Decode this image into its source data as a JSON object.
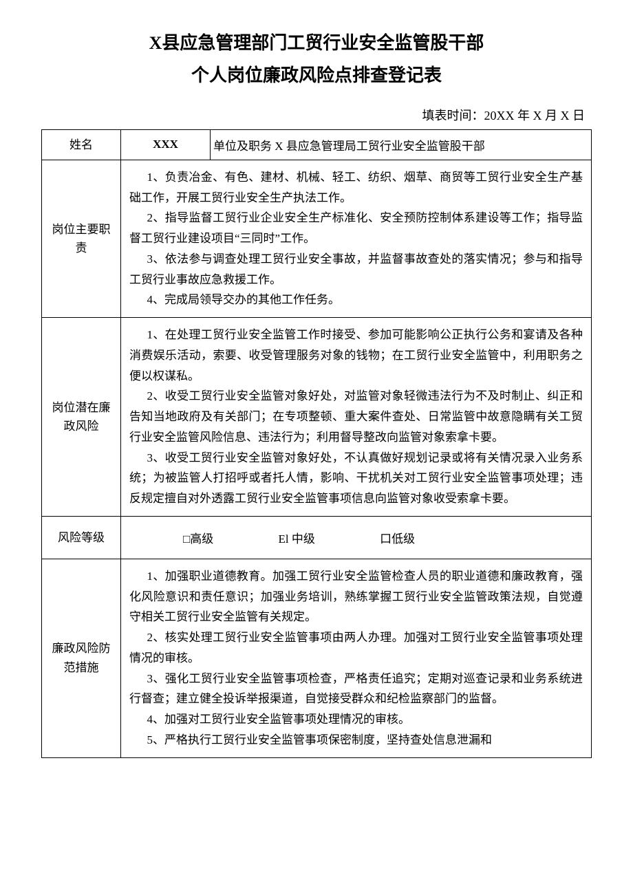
{
  "title_line1": "X县应急管理部门工贸行业安全监管股干部",
  "title_line2": "个人岗位廉政风险点排查登记表",
  "fill_time_label": "填表时间：20XX 年 X 月 X 日",
  "row_name": {
    "label": "姓名",
    "value": "XXX",
    "unit_label": "单位及职务",
    "unit_value": "X 县应急管理局工贸行业安全监管股干部"
  },
  "row_duty": {
    "label": "岗位主要职责",
    "items": [
      "1、负责冶金、有色、建材、机械、轻工、纺织、烟草、商贸等工贸行业安全生产基础工作，开展工贸行业安全生产执法工作。",
      "2、指导监督工贸行业企业安全生产标准化、安全预防控制体系建设等工作；指导监督工贸行业建设项目“三同时”工作。",
      "3、依法参与调查处理工贸行业安全事故，并监督事故查处的落实情况；参与和指导工贸行业事故应急救援工作。",
      "4、完成局领导交办的其他工作任务。"
    ]
  },
  "row_risk": {
    "label": "岗位潜在廉政风险",
    "items": [
      "1、在处理工贸行业安全监管工作时接受、参加可能影响公正执行公务和宴请及各种消费娱乐活动，索要、收受管理服务对象的钱物；在工贸行业安全监管中，利用职务之便以权谋私。",
      "2、收受工贸行业安全监管对象好处，对监管对象轻微违法行为不及时制止、纠正和告知当地政府及有关部门；在专项整顿、重大案件查处、日常监管中故意隐瞒有关工贸行业安全监管风险信息、违法行为；利用督导整改向监管对象索拿卡要。",
      "3、收受工贸行业安全监管对象好处，不认真做好规划记录或将有关情况录入业务系统；为被监管人打招呼或者托人情，影响、干扰机关对工贸行业安全监管事项处理；违反规定擅自对外透露工贸行业安全监管事项信息向监管对象收受索拿卡要。"
    ]
  },
  "row_level": {
    "label": "风险等级",
    "options": [
      "□高级",
      "El 中级",
      "口低级"
    ]
  },
  "row_measure": {
    "label": "廉政风险防范措施",
    "items": [
      "1、加强职业道德教育。加强工贸行业安全监管检查人员的职业道德和廉政教育，强化风险意识和责任意识；加强业务培训，熟练掌握工贸行业安全监管政策法规，自觉遵守相关工贸行业安全监管有关规定。",
      "2、核实处理工贸行业安全监管事项由两人办理。加强对工贸行业安全监管事项处理情况的审核。",
      "3、强化工贸行业安全监管事项检查，严格责任追究；定期对巡查记录和业务系统进行督查；建立健全投诉举报渠道，自觉接受群众和纪检监察部门的监督。",
      "4、加强对工贸行业安全监管事项处理情况的审核。",
      "5、严格执行工贸行业安全监管事项保密制度，坚持查处信息泄漏和"
    ]
  }
}
